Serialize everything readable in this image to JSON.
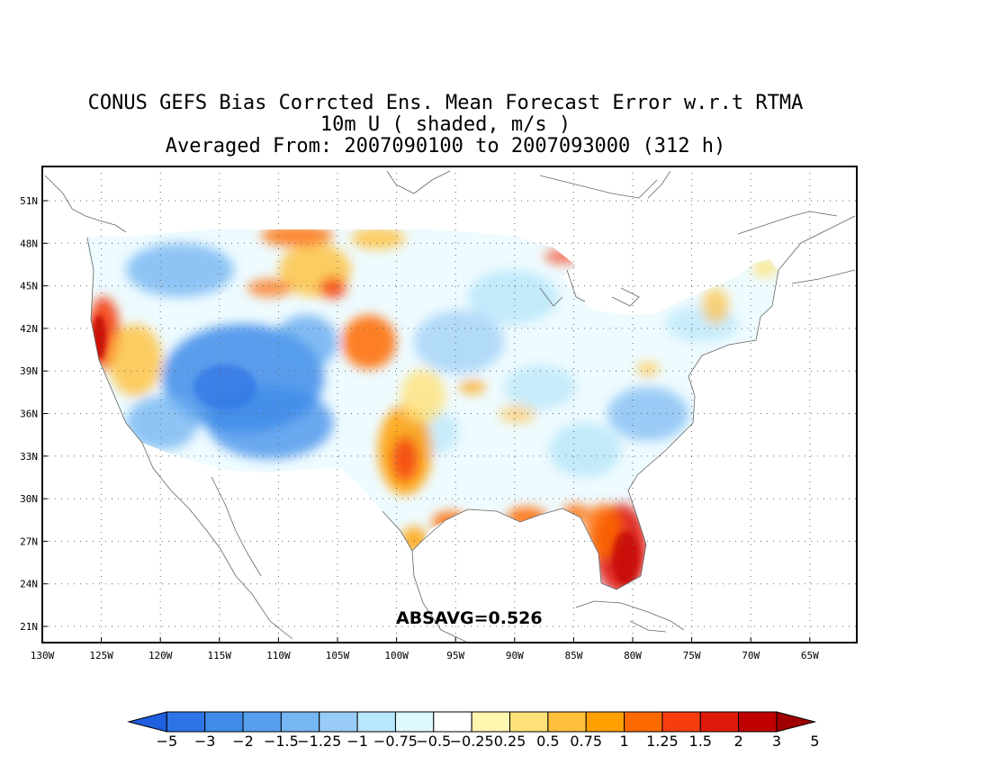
{
  "title": {
    "line1": "CONUS GEFS Bias Corrcted Ens. Mean Forecast Error w.r.t RTMA",
    "line2": "10m U ( shaded, m/s )",
    "line3": "Averaged From: 2007090100 to 2007093000 (312 h)"
  },
  "annotation": "ABSAVG=0.526",
  "axes": {
    "lat_labels": [
      "51N",
      "48N",
      "45N",
      "42N",
      "39N",
      "36N",
      "33N",
      "30N",
      "27N",
      "24N",
      "21N"
    ],
    "lon_labels": [
      "130W",
      "125W",
      "120W",
      "115W",
      "110W",
      "105W",
      "100W",
      "95W",
      "90W",
      "85W",
      "80W",
      "75W",
      "70W",
      "65W"
    ]
  },
  "colorbar": {
    "labels": [
      "-5",
      "-3",
      "-2",
      "-1.5",
      "-1.25",
      "-1",
      "-0.75",
      "-0.5",
      "-0.25",
      "0.25",
      "0.5",
      "0.75",
      "1",
      "1.25",
      "1.5",
      "2",
      "3",
      "5"
    ],
    "colors": [
      "#1f5fe0",
      "#2f74e6",
      "#3f8cea",
      "#56a0ee",
      "#76b6f2",
      "#98ccf6",
      "#b8e6fa",
      "#def8ff",
      "#ffffff",
      "#fff6b0",
      "#ffe27a",
      "#ffc03c",
      "#ff9f00",
      "#ff6a00",
      "#f53d10",
      "#e01a0a",
      "#c00000",
      "#a00000"
    ]
  },
  "map_fields": {
    "negative_color": "#3f8cea",
    "positive_color": "#ff6a00",
    "strong_positive_color": "#e01a0a"
  }
}
